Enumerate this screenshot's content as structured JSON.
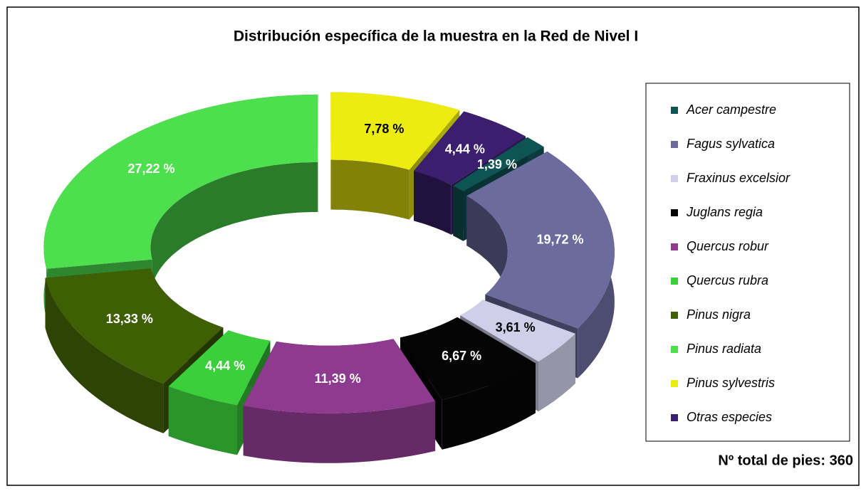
{
  "chart_data": {
    "type": "donut",
    "title": "Distribución específica de la muestra en la Red de Nivel I",
    "categories": [
      "Acer campestre",
      "Fagus sylvatica",
      "Fraxinus excelsior",
      "Juglans regia",
      "Quercus robur",
      "Quercus rubra",
      "Pinus nigra",
      "Pinus radiata",
      "Pinus sylvestris",
      "Otras especies"
    ],
    "values": [
      1.39,
      19.72,
      3.61,
      6.67,
      11.39,
      4.44,
      13.33,
      27.22,
      7.78,
      4.44
    ],
    "value_labels": [
      "1,39 %",
      "19,72 %",
      "3,61 %",
      "6,67 %",
      "11,39 %",
      "4,44 %",
      "13,33 %",
      "27,22 %",
      "7,78 %",
      "4,44 %"
    ],
    "colors": [
      "#0f5454",
      "#6b6b9e",
      "#cfcfea",
      "#050505",
      "#8e3a8e",
      "#3ccf3c",
      "#3f5f05",
      "#4ddf4d",
      "#ecec10",
      "#3b1f6e"
    ],
    "legend": "right",
    "annotation": "Nº total de pies: 360"
  }
}
